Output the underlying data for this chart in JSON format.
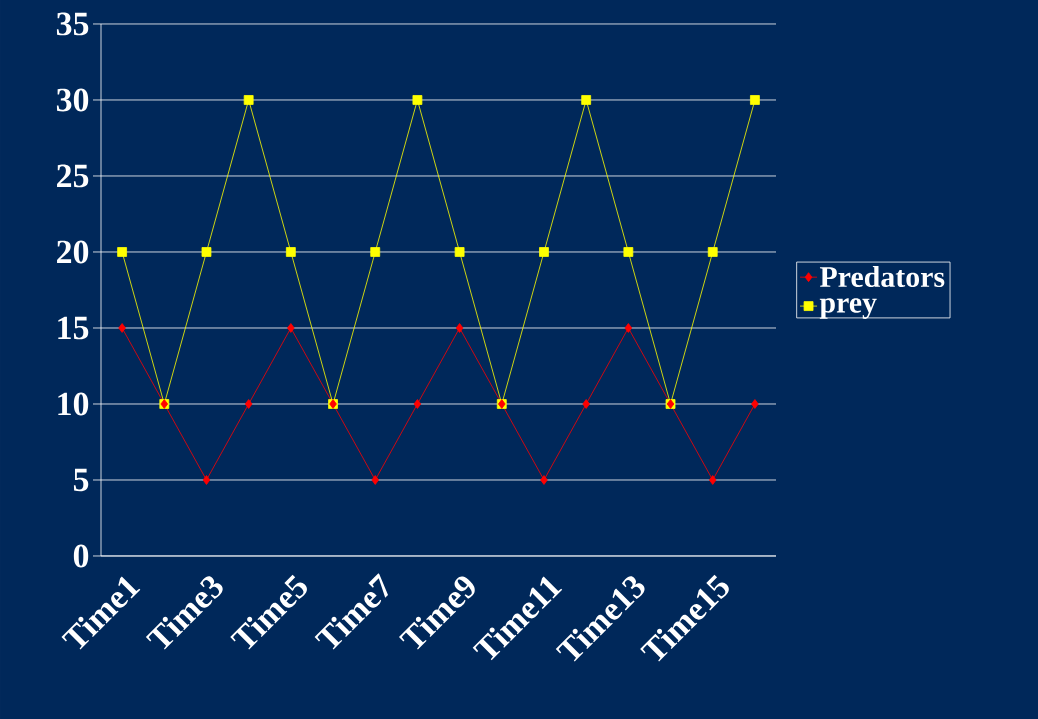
{
  "chart_data": {
    "type": "line",
    "categories": [
      "Time1",
      null,
      "Time3",
      null,
      "Time5",
      null,
      "Time7",
      null,
      "Time9",
      null,
      "Time11",
      null,
      "Time13",
      null,
      "Time15",
      null
    ],
    "series": [
      {
        "name": "Predators",
        "color": "#ff0000",
        "marker": "diamond",
        "values": [
          15,
          10,
          5,
          10,
          15,
          10,
          5,
          10,
          15,
          10,
          5,
          10,
          15,
          10,
          5,
          10
        ]
      },
      {
        "name": "prey",
        "color": "#ffff00",
        "marker": "square",
        "values": [
          20,
          10,
          20,
          30,
          20,
          10,
          20,
          30,
          20,
          10,
          20,
          30,
          20,
          10,
          20,
          30
        ]
      }
    ],
    "ylim": [
      0,
      35
    ],
    "yticks": [
      0,
      5,
      10,
      15,
      20,
      25,
      30,
      35
    ],
    "grid": "y",
    "legend": "right",
    "line_style": "solid"
  }
}
